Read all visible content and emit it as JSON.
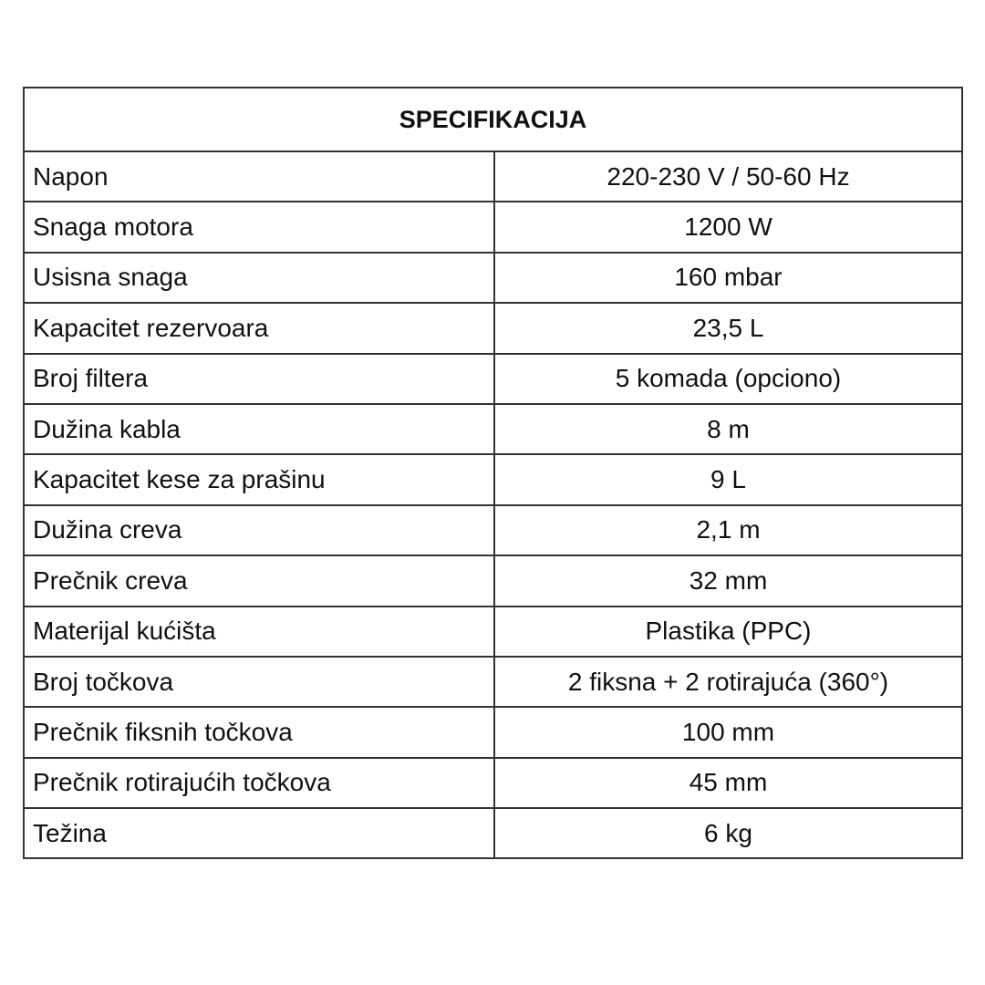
{
  "title": "SPECIFIKACIJA",
  "rows": [
    {
      "label": "Napon",
      "value": "220-230 V / 50-60 Hz"
    },
    {
      "label": "Snaga motora",
      "value": "1200 W"
    },
    {
      "label": "Usisna snaga",
      "value": "160 mbar"
    },
    {
      "label": "Kapacitet rezervoara",
      "value": "23,5 L"
    },
    {
      "label": "Broj filtera",
      "value": "5 komada (opciono)"
    },
    {
      "label": "Dužina kabla",
      "value": "8 m"
    },
    {
      "label": "Kapacitet kese za prašinu",
      "value": "9 L"
    },
    {
      "label": "Dužina creva",
      "value": "2,1 m"
    },
    {
      "label": "Prečnik creva",
      "value": "32 mm"
    },
    {
      "label": "Materijal kućišta",
      "value": "Plastika (PPC)"
    },
    {
      "label": "Broj točkova",
      "value": "2 fiksna + 2 rotirajuća (360°)"
    },
    {
      "label": "Prečnik fiksnih točkova",
      "value": "100 mm"
    },
    {
      "label": "Prečnik rotirajućih točkova",
      "value": "45 mm"
    },
    {
      "label": "Težina",
      "value": "6 kg"
    }
  ]
}
